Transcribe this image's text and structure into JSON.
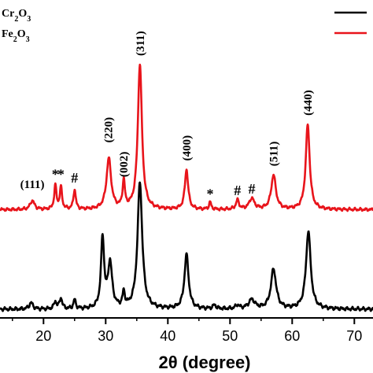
{
  "chart_data": {
    "type": "line",
    "title": "",
    "xlabel": "2θ (degree)",
    "ylabel": "",
    "xlim": [
      13,
      73
    ],
    "xticks": [
      20,
      30,
      40,
      50,
      60,
      70
    ],
    "grid": false,
    "legend_position": "top",
    "legend": [
      {
        "parts": [
          [
            "Cr",
            ""
          ],
          [
            "2",
            "sub"
          ],
          [
            "O",
            ""
          ],
          [
            "3",
            "sub"
          ]
        ],
        "color": "#000000"
      },
      {
        "parts": [
          [
            "Fe",
            ""
          ],
          [
            "2",
            "sub"
          ],
          [
            "O",
            ""
          ],
          [
            "3",
            "sub"
          ]
        ],
        "color": "#e8141b"
      }
    ],
    "series": [
      {
        "color": "#000000",
        "baseline": 0.0,
        "noise_amp": 0.012,
        "peaks": [
          [
            18.0,
            0.035,
            0.35
          ],
          [
            21.9,
            0.04,
            0.25
          ],
          [
            22.8,
            0.06,
            0.25
          ],
          [
            25.0,
            0.05,
            0.22
          ],
          [
            29.5,
            0.39,
            0.3
          ],
          [
            30.7,
            0.25,
            0.4
          ],
          [
            32.9,
            0.08,
            0.22
          ],
          [
            35.5,
            0.7,
            0.45
          ],
          [
            43.0,
            0.3,
            0.4
          ],
          [
            47.5,
            0.02,
            0.3
          ],
          [
            51.2,
            0.02,
            0.35
          ],
          [
            53.5,
            0.05,
            0.6
          ],
          [
            57.0,
            0.22,
            0.5
          ],
          [
            62.6,
            0.43,
            0.45
          ]
        ]
      },
      {
        "color": "#e8141b",
        "baseline": 0.55,
        "noise_amp": 0.01,
        "peaks": [
          [
            18.2,
            0.05,
            0.4
          ],
          [
            21.9,
            0.13,
            0.22
          ],
          [
            22.8,
            0.12,
            0.22
          ],
          [
            25.0,
            0.11,
            0.22
          ],
          [
            30.5,
            0.28,
            0.45
          ],
          [
            32.9,
            0.15,
            0.22
          ],
          [
            35.5,
            0.8,
            0.4
          ],
          [
            43.0,
            0.22,
            0.32
          ],
          [
            46.8,
            0.04,
            0.2
          ],
          [
            51.2,
            0.05,
            0.3
          ],
          [
            53.5,
            0.06,
            0.5
          ],
          [
            57.0,
            0.19,
            0.45
          ],
          [
            62.5,
            0.47,
            0.38
          ]
        ]
      }
    ],
    "annotations": [
      {
        "text": "(111)",
        "x": 18.2,
        "y": 0.67
      },
      {
        "text": "*",
        "x": 21.9,
        "y": 0.72
      },
      {
        "text": "*",
        "x": 22.8,
        "y": 0.72
      },
      {
        "text": "#",
        "x": 25.0,
        "y": 0.7
      },
      {
        "text": "(220)",
        "x": 30.4,
        "y": 0.92,
        "rotate": -90
      },
      {
        "text": "(002)",
        "x": 32.9,
        "y": 0.73,
        "rotate": -90
      },
      {
        "text": "(311)",
        "x": 35.5,
        "y": 1.4,
        "rotate": -90
      },
      {
        "text": "(400)",
        "x": 43.0,
        "y": 0.82,
        "rotate": -90
      },
      {
        "text": "*",
        "x": 46.8,
        "y": 0.61
      },
      {
        "text": "#",
        "x": 51.2,
        "y": 0.63
      },
      {
        "text": "#",
        "x": 53.5,
        "y": 0.64
      },
      {
        "text": "(511)",
        "x": 57.0,
        "y": 0.79,
        "rotate": -90
      },
      {
        "text": "(440)",
        "x": 62.5,
        "y": 1.07,
        "rotate": -90
      }
    ]
  }
}
